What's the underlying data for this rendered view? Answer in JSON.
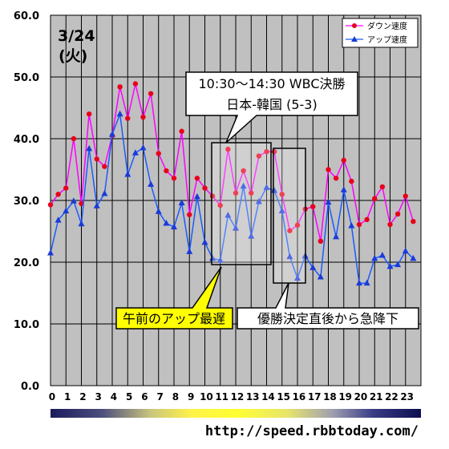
{
  "chart_data": {
    "type": "line",
    "date_label": "3/24",
    "weekday_label": "(火)",
    "categories": [
      0,
      0.5,
      1,
      1.5,
      2,
      2.5,
      3,
      3.5,
      4,
      4.5,
      5,
      5.5,
      6,
      6.5,
      7,
      7.5,
      8,
      8.5,
      9,
      9.5,
      10,
      10.5,
      11,
      11.5,
      12,
      12.5,
      13,
      13.5,
      14,
      14.5,
      15,
      15.5,
      16,
      16.5,
      17,
      17.5,
      18,
      18.5,
      19,
      19.5,
      20,
      20.5,
      21,
      21.5,
      22,
      22.5,
      23,
      23.5
    ],
    "x_tick_labels": [
      "0",
      "1",
      "2",
      "3",
      "4",
      "5",
      "6",
      "7",
      "8",
      "9",
      "10",
      "11",
      "12",
      "13",
      "14",
      "15",
      "16",
      "17",
      "18",
      "19",
      "20",
      "21",
      "22",
      "23"
    ],
    "y_tick_labels": [
      "0.0",
      "10.0",
      "20.0",
      "30.0",
      "40.0",
      "50.0",
      "60.0"
    ],
    "ylim": [
      0,
      60
    ],
    "xlim": [
      0,
      24
    ],
    "grid": true,
    "legend_position": "top-right",
    "series": [
      {
        "name": "ダウン速度",
        "color": "#ff00ff",
        "marker_color": "#e8001c",
        "values": [
          29.3,
          31.0,
          32.0,
          40.0,
          29.5,
          44.0,
          36.7,
          35.5,
          40.5,
          48.4,
          43.3,
          48.9,
          43.5,
          47.3,
          37.6,
          34.8,
          33.6,
          41.2,
          27.7,
          33.6,
          32.0,
          30.7,
          29.2,
          38.3,
          31.2,
          34.8,
          31.2,
          37.2,
          37.9,
          37.9,
          31.0,
          25.1,
          26.0,
          28.6,
          29.0,
          23.4,
          35.0,
          33.6,
          36.5,
          33.1,
          26.1,
          26.9,
          30.3,
          32.2,
          26.1,
          27.8,
          30.7,
          26.6
        ]
      },
      {
        "name": "アップ速度",
        "color": "#1a5bff",
        "marker_color": "#1a3bd8",
        "values": [
          21.5,
          26.8,
          28.3,
          29.9,
          26.2,
          38.4,
          29.1,
          31.1,
          40.7,
          44.0,
          34.2,
          37.7,
          38.5,
          32.6,
          28.2,
          26.3,
          25.7,
          29.6,
          21.7,
          30.6,
          23.2,
          20.6,
          20.3,
          27.6,
          25.5,
          32.3,
          24.2,
          29.8,
          32.1,
          31.6,
          28.3,
          20.9,
          17.4,
          21.0,
          19.1,
          17.6,
          29.7,
          24.1,
          31.7,
          25.9,
          16.6,
          16.6,
          20.6,
          21.1,
          19.3,
          19.6,
          21.8,
          20.6
        ]
      }
    ],
    "annotations": {
      "wbc_line1": "10:30～14:30 WBC決勝",
      "wbc_line2": "日本-韓国 (5-3)",
      "morning_low": "午前のアップ最遅",
      "drop_after_win": "優勝決定直後から急降下"
    },
    "url": "http://speed.rbbtoday.com/"
  }
}
